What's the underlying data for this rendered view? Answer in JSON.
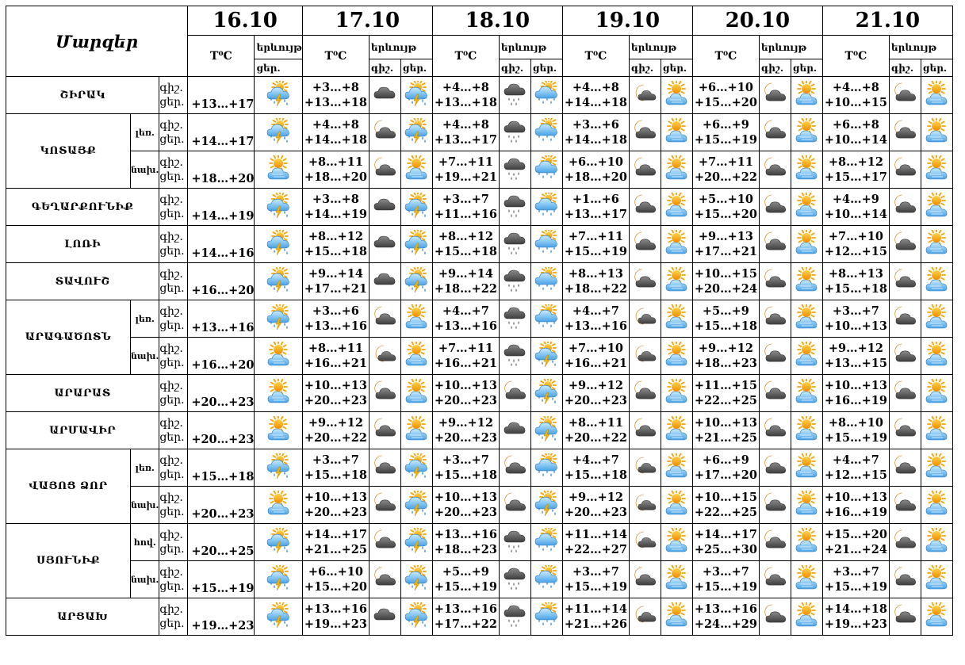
{
  "header": {
    "regions_label": "Մարզեր",
    "dates": [
      "16.10",
      "17.10",
      "18.10",
      "19.10",
      "20.10",
      "21.10"
    ],
    "temp_label": "T⁰C",
    "phenomenon_label": "երևույթ",
    "night_label": "գիշ.",
    "day_label": "ցեր."
  },
  "tod": {
    "night": "գիշ.",
    "day": "ցեր."
  },
  "regions": [
    {
      "name": "ՇԻՐԱԿ",
      "rows": [
        {
          "sub": "",
          "t16": "+13…+17",
          "i16": "storm",
          "days": [
            {
              "n": "+3…+8",
              "d": "+13…+18",
              "in": "cloud",
              "id": "storm"
            },
            {
              "n": "+4…+8",
              "d": "+13…+18",
              "in": "rain-cloud",
              "id": "rain"
            },
            {
              "n": "+4…+8",
              "d": "+14…+18",
              "in": "moon",
              "id": "sun-cloud"
            },
            {
              "n": "+6…+10",
              "d": "+15…+20",
              "in": "moon-cloud",
              "id": "sun-cloud"
            },
            {
              "n": "+4…+8",
              "d": "+10…+15",
              "in": "moon-cloud",
              "id": "sun-cloud"
            }
          ]
        }
      ]
    },
    {
      "name": "ԿՈՏԱՅՔ",
      "rows": [
        {
          "sub": "լեռ.",
          "t16": "+14…+17",
          "i16": "storm",
          "days": [
            {
              "n": "+4…+8",
              "d": "+14…+18",
              "in": "moon-cloud",
              "id": "storm"
            },
            {
              "n": "+4…+8",
              "d": "+13…+17",
              "in": "rain-cloud",
              "id": "rain"
            },
            {
              "n": "+3…+6",
              "d": "+14…+18",
              "in": "moon-cloud",
              "id": "sun-cloud"
            },
            {
              "n": "+6…+9",
              "d": "+15…+19",
              "in": "moon-cloud",
              "id": "sun-cloud"
            },
            {
              "n": "+6…+8",
              "d": "+10…+14",
              "in": "moon-cloud",
              "id": "sun-cloud"
            }
          ]
        },
        {
          "sub": "նախ.",
          "t16": "+18…+20",
          "i16": "sun-cloud",
          "days": [
            {
              "n": "+8…+11",
              "d": "+18…+20",
              "in": "moon-cloud",
              "id": "sun-cloud"
            },
            {
              "n": "+7…+11",
              "d": "+19…+21",
              "in": "rain-cloud",
              "id": "rain"
            },
            {
              "n": "+6…+10",
              "d": "+18…+20",
              "in": "moon-cloud",
              "id": "sun-cloud"
            },
            {
              "n": "+7…+11",
              "d": "+20…+22",
              "in": "moon-cloud",
              "id": "sun-cloud"
            },
            {
              "n": "+8…+12",
              "d": "+15…+17",
              "in": "moon-cloud",
              "id": "sun-cloud"
            }
          ]
        }
      ]
    },
    {
      "name": "ԳԵՂԱՐՔՈՒՆԻՔ",
      "rows": [
        {
          "sub": "",
          "t16": "+14…+19",
          "i16": "storm",
          "days": [
            {
              "n": "+3…+8",
              "d": "+14…+19",
              "in": "cloud",
              "id": "storm"
            },
            {
              "n": "+3…+7",
              "d": "+11…+16",
              "in": "rain-cloud",
              "id": "rain"
            },
            {
              "n": "+1…+6",
              "d": "+13…+17",
              "in": "moon-cloud",
              "id": "sun-cloud"
            },
            {
              "n": "+5…+10",
              "d": "+15…+20",
              "in": "moon-cloud",
              "id": "sun-cloud"
            },
            {
              "n": "+4…+9",
              "d": "+10…+14",
              "in": "moon-cloud",
              "id": "sun-cloud"
            }
          ]
        }
      ]
    },
    {
      "name": "ԼՈՌԻ",
      "rows": [
        {
          "sub": "",
          "t16": "+14…+16",
          "i16": "storm",
          "days": [
            {
              "n": "+8…+12",
              "d": "+15…+18",
              "in": "cloud",
              "id": "storm"
            },
            {
              "n": "+8…+12",
              "d": "+15…+18",
              "in": "rain-cloud",
              "id": "rain"
            },
            {
              "n": "+7…+11",
              "d": "+15…+19",
              "in": "moon-cloud",
              "id": "sun-cloud"
            },
            {
              "n": "+9…+13",
              "d": "+17…+21",
              "in": "moon-cloud",
              "id": "sun-cloud"
            },
            {
              "n": "+7…+10",
              "d": "+12…+15",
              "in": "moon-cloud",
              "id": "sun-cloud"
            }
          ]
        }
      ]
    },
    {
      "name": "ՏԱՎՈՒՇ",
      "rows": [
        {
          "sub": "",
          "t16": "+16…+20",
          "i16": "storm",
          "days": [
            {
              "n": "+9…+14",
              "d": "+17…+21",
              "in": "cloud",
              "id": "storm"
            },
            {
              "n": "+9…+14",
              "d": "+18…+22",
              "in": "rain-cloud",
              "id": "rain"
            },
            {
              "n": "+8…+13",
              "d": "+18…+22",
              "in": "moon-cloud",
              "id": "sun-cloud"
            },
            {
              "n": "+10…+15",
              "d": "+20…+24",
              "in": "moon-cloud",
              "id": "sun-cloud"
            },
            {
              "n": "+8…+13",
              "d": "+15…+18",
              "in": "moon-cloud",
              "id": "sun-cloud"
            }
          ]
        }
      ]
    },
    {
      "name": "ԱՐԱԳԱԾՈՏՆ",
      "rows": [
        {
          "sub": "լեռ.",
          "t16": "+13…+16",
          "i16": "storm",
          "days": [
            {
              "n": "+3…+6",
              "d": "+13…+16",
              "in": "moon-cloud",
              "id": "sun-cloud"
            },
            {
              "n": "+4…+7",
              "d": "+13…+16",
              "in": "rain-cloud",
              "id": "rain"
            },
            {
              "n": "+4…+7",
              "d": "+13…+16",
              "in": "moon",
              "id": "sun-cloud"
            },
            {
              "n": "+5…+9",
              "d": "+15…+18",
              "in": "moon-cloud",
              "id": "sun-cloud"
            },
            {
              "n": "+3…+7",
              "d": "+10…+13",
              "in": "moon-cloud",
              "id": "sun-cloud"
            }
          ]
        },
        {
          "sub": "նախ.",
          "t16": "+16…+20",
          "i16": "sun-cloud",
          "days": [
            {
              "n": "+8…+11",
              "d": "+16…+21",
              "in": "moon",
              "id": "sun-cloud"
            },
            {
              "n": "+7…+11",
              "d": "+16…+21",
              "in": "rain-cloud",
              "id": "storm"
            },
            {
              "n": "+7…+10",
              "d": "+16…+21",
              "in": "moon",
              "id": "sun-cloud"
            },
            {
              "n": "+9…+12",
              "d": "+18…+23",
              "in": "moon-cloud",
              "id": "sun-cloud"
            },
            {
              "n": "+9…+12",
              "d": "+13…+15",
              "in": "moon-cloud",
              "id": "sun-cloud"
            }
          ]
        }
      ]
    },
    {
      "name": "ԱՐԱՐԱՏ",
      "rows": [
        {
          "sub": "",
          "t16": "+20…+23",
          "i16": "sun-cloud",
          "days": [
            {
              "n": "+10…+13",
              "d": "+20…+23",
              "in": "moon-cloud",
              "id": "sun-cloud"
            },
            {
              "n": "+10…+13",
              "d": "+20…+23",
              "in": "moon-cloud",
              "id": "storm"
            },
            {
              "n": "+9…+12",
              "d": "+20…+23",
              "in": "moon-cloud",
              "id": "sun-cloud"
            },
            {
              "n": "+11…+15",
              "d": "+22…+25",
              "in": "moon-cloud",
              "id": "sun-cloud"
            },
            {
              "n": "+10…+13",
              "d": "+16…+19",
              "in": "moon-cloud",
              "id": "sun-cloud"
            }
          ]
        }
      ]
    },
    {
      "name": "ԱՐՄԱՎԻՐ",
      "rows": [
        {
          "sub": "",
          "t16": "+20…+23",
          "i16": "sun-cloud",
          "days": [
            {
              "n": "+9…+12",
              "d": "+20…+22",
              "in": "moon-cloud",
              "id": "sun-cloud"
            },
            {
              "n": "+9…+12",
              "d": "+20…+23",
              "in": "cloud",
              "id": "storm"
            },
            {
              "n": "+8…+11",
              "d": "+20…+22",
              "in": "moon-cloud",
              "id": "sun-cloud"
            },
            {
              "n": "+10…+13",
              "d": "+21…+25",
              "in": "moon-cloud",
              "id": "sun-cloud"
            },
            {
              "n": "+8…+10",
              "d": "+15…+19",
              "in": "moon-cloud",
              "id": "sun-cloud"
            }
          ]
        }
      ]
    },
    {
      "name": "ՎԱՅՈՑ ՁՈՐ",
      "rows": [
        {
          "sub": "լեռ.",
          "t16": "+15…+18",
          "i16": "storm",
          "days": [
            {
              "n": "+3…+7",
              "d": "+15…+18",
              "in": "moon-cloud",
              "id": "storm"
            },
            {
              "n": "+3…+7",
              "d": "+15…+18",
              "in": "moon-cloud",
              "id": "rain"
            },
            {
              "n": "+4…+7",
              "d": "+15…+18",
              "in": "moon",
              "id": "sun-cloud"
            },
            {
              "n": "+6…+9",
              "d": "+17…+20",
              "in": "moon-cloud",
              "id": "sun-cloud"
            },
            {
              "n": "+4…+7",
              "d": "+12…+15",
              "in": "moon-cloud",
              "id": "sun-cloud"
            }
          ]
        },
        {
          "sub": "նախ.",
          "t16": "+20…+23",
          "i16": "sun-cloud",
          "days": [
            {
              "n": "+10…+13",
              "d": "+20…+23",
              "in": "moon-cloud",
              "id": "storm"
            },
            {
              "n": "+10…+13",
              "d": "+20…+23",
              "in": "moon-cloud",
              "id": "storm"
            },
            {
              "n": "+9…+12",
              "d": "+20…+23",
              "in": "moon",
              "id": "sun-cloud"
            },
            {
              "n": "+10…+15",
              "d": "+22…+25",
              "in": "moon-cloud",
              "id": "sun-cloud"
            },
            {
              "n": "+10…+13",
              "d": "+16…+19",
              "in": "moon-cloud",
              "id": "sun-cloud"
            }
          ]
        }
      ]
    },
    {
      "name": "ՍՅՈՒՆԻՔ",
      "rows": [
        {
          "sub": "հով.",
          "t16": "+20…+25",
          "i16": "storm",
          "days": [
            {
              "n": "+14…+17",
              "d": "+21…+25",
              "in": "moon-cloud",
              "id": "storm"
            },
            {
              "n": "+13…+16",
              "d": "+18…+23",
              "in": "rain-cloud",
              "id": "rain"
            },
            {
              "n": "+11…+14",
              "d": "+22…+27",
              "in": "moon",
              "id": "sun-cloud"
            },
            {
              "n": "+14…+17",
              "d": "+25…+30",
              "in": "moon-cloud",
              "id": "sun-cloud"
            },
            {
              "n": "+15…+20",
              "d": "+21…+24",
              "in": "moon-cloud",
              "id": "sun-cloud"
            }
          ]
        },
        {
          "sub": "նախ.",
          "t16": "+15…+19",
          "i16": "storm",
          "days": [
            {
              "n": "+6…+10",
              "d": "+15…+20",
              "in": "moon-cloud",
              "id": "storm"
            },
            {
              "n": "+5…+9",
              "d": "+15…+19",
              "in": "rain-cloud",
              "id": "rain"
            },
            {
              "n": "+3…+7",
              "d": "+15…+19",
              "in": "moon-cloud",
              "id": "sun-cloud"
            },
            {
              "n": "+3…+7",
              "d": "+15…+19",
              "in": "moon-cloud",
              "id": "sun-cloud"
            },
            {
              "n": "+3…+7",
              "d": "+15…+19",
              "in": "moon-cloud",
              "id": "sun-cloud"
            }
          ]
        }
      ]
    },
    {
      "name": "ԱՐՑԱԽ",
      "rows": [
        {
          "sub": "",
          "t16": "+19…+23",
          "i16": "storm",
          "days": [
            {
              "n": "+13…+16",
              "d": "+19…+23",
              "in": "cloud",
              "id": "storm"
            },
            {
              "n": "+13…+16",
              "d": "+17…+22",
              "in": "rain-cloud",
              "id": "rain"
            },
            {
              "n": "+11…+14",
              "d": "+21…+26",
              "in": "moon",
              "id": "sun-cloud"
            },
            {
              "n": "+13…+16",
              "d": "+24…+29",
              "in": "moon-cloud",
              "id": "sun-cloud"
            },
            {
              "n": "+14…+18",
              "d": "+19…+23",
              "in": "moon-cloud",
              "id": "sun-cloud"
            }
          ]
        }
      ]
    }
  ],
  "colors": {
    "border": "#000000",
    "cloud_dark": "#5a5a5a",
    "cloud_light": "#9a9a9a",
    "sun": "#f5a300",
    "moon": "#f08a00",
    "rain": "#3d8ed8",
    "bolt": "#f3b400",
    "cloud_blue": "#7fc2f0"
  }
}
